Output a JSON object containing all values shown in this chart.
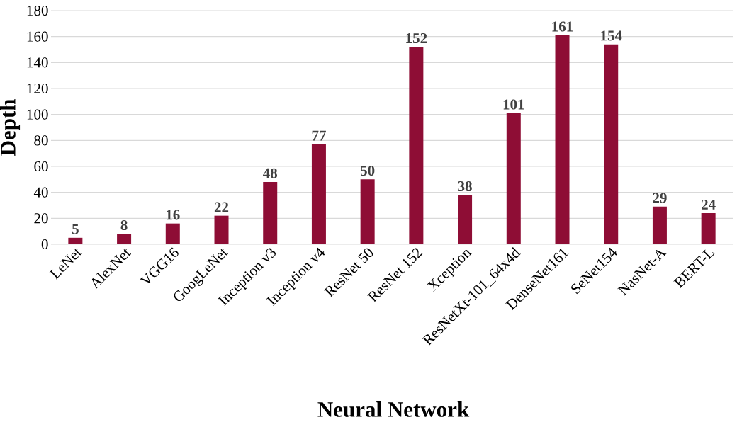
{
  "chart_data": {
    "type": "bar",
    "xlabel": "Neural Network",
    "ylabel": "Depth",
    "categories": [
      "LeNet",
      "AlexNet",
      "VGG16",
      "GoogLeNet",
      "Inception v3",
      "Inception v4",
      "ResNet 50",
      "ResNet 152",
      "Xception",
      "ResNetXt-101_64x4d",
      "DenseNet161",
      "SeNet154",
      "NasNet-A",
      "BERT-L"
    ],
    "values": [
      5,
      8,
      16,
      22,
      48,
      77,
      50,
      152,
      38,
      101,
      161,
      154,
      29,
      24
    ],
    "color": "#8e0d35",
    "data_labels": true,
    "grid": "y",
    "ylim": [
      0,
      180
    ],
    "yticks": [
      0,
      20,
      40,
      60,
      80,
      100,
      120,
      140,
      160,
      180
    ]
  }
}
